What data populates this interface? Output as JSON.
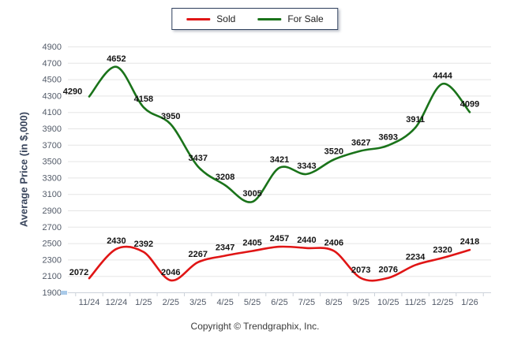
{
  "legend": {
    "items": [
      {
        "label": "Sold",
        "color": "#e01515"
      },
      {
        "label": "For Sale",
        "color": "#1a731a"
      }
    ]
  },
  "chart_data": {
    "type": "line",
    "title": "",
    "ylabel": "Average Price (in $,000)",
    "xlabel": "",
    "footer": "Copyright © Trendgraphix, Inc.",
    "ylim": [
      1900,
      4900
    ],
    "ytick_step": 200,
    "grid": true,
    "legend_position": "top-center",
    "categories": [
      "11/24",
      "12/24",
      "1/25",
      "2/25",
      "3/25",
      "4/25",
      "5/25",
      "6/25",
      "7/25",
      "8/25",
      "9/25",
      "10/25",
      "11/25",
      "12/25",
      "1/26"
    ],
    "series": [
      {
        "name": "Sold",
        "color": "#e01515",
        "values": [
          2072,
          2430,
          2392,
          2046,
          2267,
          2347,
          2405,
          2457,
          2440,
          2406,
          2073,
          2076,
          2234,
          2320,
          2418
        ]
      },
      {
        "name": "For Sale",
        "color": "#1a731a",
        "values": [
          4290,
          4652,
          4158,
          3950,
          3437,
          3208,
          3005,
          3421,
          3343,
          3520,
          3627,
          3693,
          3911,
          4444,
          4099
        ]
      }
    ]
  }
}
